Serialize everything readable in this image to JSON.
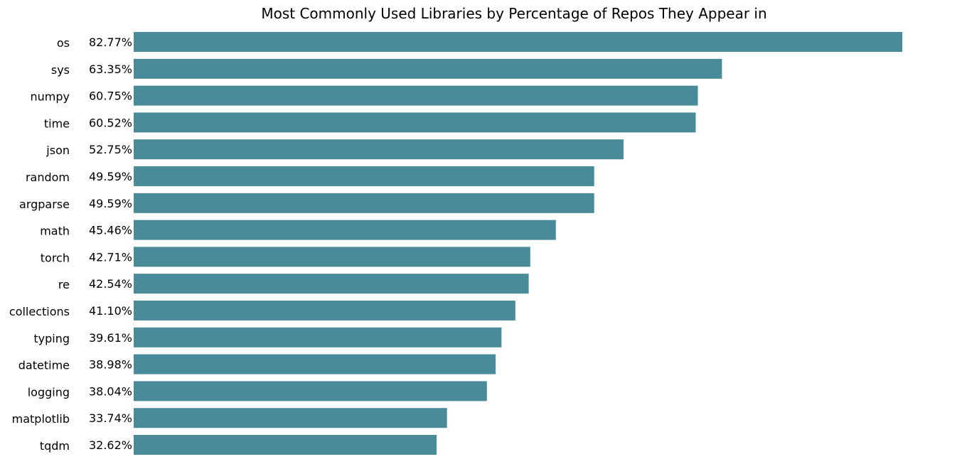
{
  "chart_data": {
    "type": "bar",
    "orientation": "horizontal",
    "title": "Most Commonly Used Libraries by Percentage of Repos They Appear in",
    "xlabel": "",
    "ylabel": "",
    "categories": [
      "os",
      "sys",
      "numpy",
      "time",
      "json",
      "random",
      "argparse",
      "math",
      "torch",
      "re",
      "collections",
      "typing",
      "datetime",
      "logging",
      "matplotlib",
      "tqdm"
    ],
    "values": [
      82.77,
      63.35,
      60.75,
      60.52,
      52.75,
      49.59,
      49.59,
      45.46,
      42.71,
      42.54,
      41.1,
      39.61,
      38.98,
      38.04,
      33.74,
      32.62
    ],
    "value_labels": [
      "82.77%",
      "63.35%",
      "60.75%",
      "60.52%",
      "52.75%",
      "49.59%",
      "49.59%",
      "45.46%",
      "42.71%",
      "42.54%",
      "41.10%",
      "39.61%",
      "38.98%",
      "38.04%",
      "33.74%",
      "32.62%"
    ],
    "xlim": [
      0,
      86.9
    ],
    "grid": false,
    "legend": "none",
    "bar_color": "#4a8b99"
  }
}
